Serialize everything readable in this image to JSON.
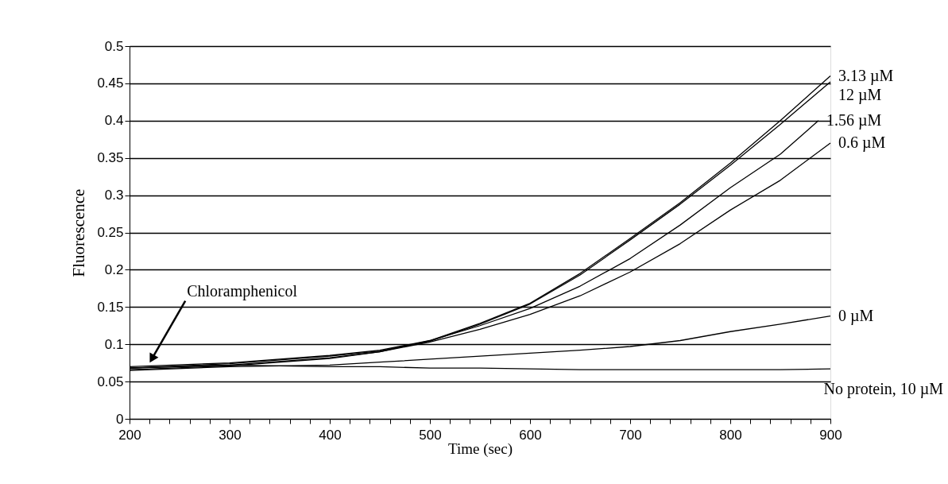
{
  "chart_data": {
    "type": "line",
    "xlabel": "Time (sec)",
    "ylabel": "Fluorescence",
    "x": [
      200,
      300,
      400,
      450,
      500,
      550,
      600,
      650,
      700,
      750,
      800,
      850,
      900
    ],
    "series": [
      {
        "name": "3.13 µM",
        "color": "#000000",
        "values": [
          0.07,
          0.075,
          0.085,
          0.092,
          0.105,
          0.128,
          0.155,
          0.195,
          0.242,
          0.29,
          0.343,
          0.4,
          0.46
        ]
      },
      {
        "name": "12 µM",
        "color": "#000000",
        "values": [
          0.068,
          0.074,
          0.084,
          0.091,
          0.104,
          0.127,
          0.154,
          0.193,
          0.24,
          0.288,
          0.34,
          0.395,
          0.452
        ]
      },
      {
        "name": "1.56 µM",
        "color": "#000000",
        "x": [
          200,
          300,
          400,
          450,
          500,
          550,
          600,
          650,
          700,
          750,
          800,
          850,
          888
        ],
        "values": [
          0.068,
          0.072,
          0.082,
          0.09,
          0.105,
          0.125,
          0.148,
          0.178,
          0.215,
          0.26,
          0.31,
          0.355,
          0.4
        ]
      },
      {
        "name": "0.6 µM",
        "color": "#000000",
        "values": [
          0.066,
          0.071,
          0.081,
          0.09,
          0.103,
          0.12,
          0.14,
          0.165,
          0.197,
          0.235,
          0.28,
          0.32,
          0.37
        ]
      },
      {
        "name": "0 µM",
        "color": "#000000",
        "values": [
          0.065,
          0.07,
          0.072,
          0.076,
          0.08,
          0.084,
          0.088,
          0.092,
          0.097,
          0.105,
          0.117,
          0.127,
          0.138
        ]
      },
      {
        "name": "No protein, 10 µM",
        "color": "#000000",
        "values": [
          0.068,
          0.072,
          0.07,
          0.07,
          0.068,
          0.068,
          0.067,
          0.066,
          0.066,
          0.066,
          0.066,
          0.066,
          0.067
        ]
      }
    ],
    "xlim": [
      200,
      900
    ],
    "xticks": [
      200,
      {
        "value": 220,
        "label": null
      },
      {
        "value": 240,
        "label": null
      },
      {
        "value": 260,
        "label": null
      },
      {
        "value": 280,
        "label": null
      },
      300,
      {
        "value": 320,
        "label": null
      },
      {
        "value": 340,
        "label": null
      },
      {
        "value": 360,
        "label": null
      },
      {
        "value": 380,
        "label": null
      },
      400,
      {
        "value": 420,
        "label": null
      },
      {
        "value": 440,
        "label": null
      },
      {
        "value": 460,
        "label": null
      },
      {
        "value": 480,
        "label": null
      },
      500,
      {
        "value": 520,
        "label": null
      },
      {
        "value": 540,
        "label": null
      },
      {
        "value": 560,
        "label": null
      },
      {
        "value": 580,
        "label": null
      },
      600,
      {
        "value": 620,
        "label": null
      },
      {
        "value": 640,
        "label": null
      },
      {
        "value": 660,
        "label": null
      },
      {
        "value": 680,
        "label": null
      },
      700,
      {
        "value": 720,
        "label": null
      },
      {
        "value": 740,
        "label": null
      },
      {
        "value": 760,
        "label": null
      },
      {
        "value": 780,
        "label": null
      },
      800,
      {
        "value": 820,
        "label": null
      },
      {
        "value": 840,
        "label": null
      },
      {
        "value": 860,
        "label": null
      },
      {
        "value": 880,
        "label": null
      },
      900
    ],
    "ylim": [
      0,
      0.5
    ],
    "yticks": [
      0,
      0.05,
      0.1,
      0.15,
      0.2,
      0.25,
      0.3,
      0.35,
      0.4,
      0.45,
      0.5
    ],
    "grid": "y",
    "legend": false,
    "marker": "none",
    "line_style": "solid",
    "annotations": [
      {
        "text": "Chloramphenicol",
        "x": 220,
        "y": 0.075
      }
    ]
  }
}
